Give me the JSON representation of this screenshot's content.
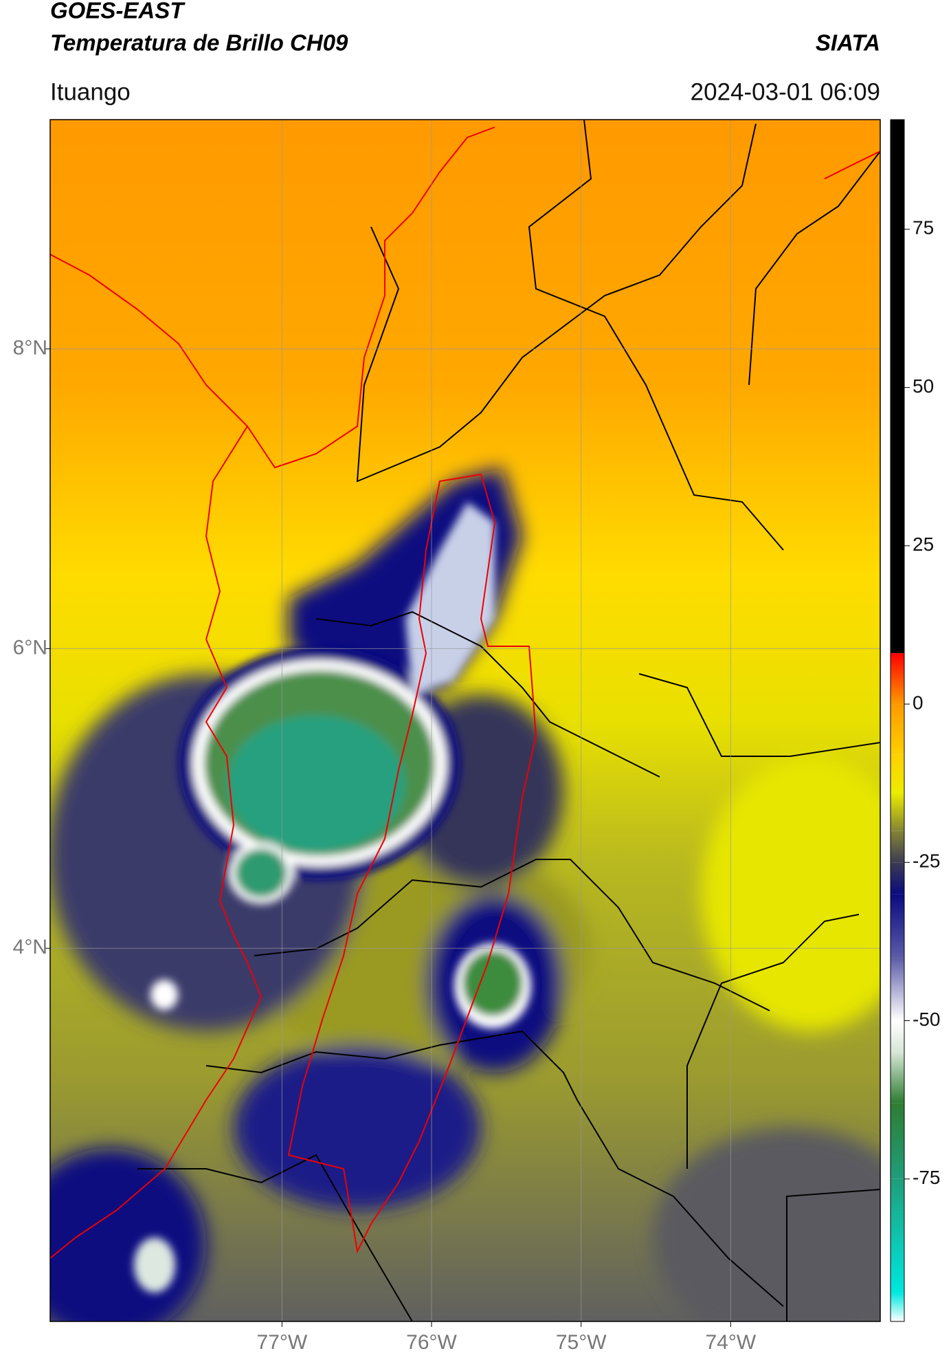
{
  "header": {
    "title": "GOES-EAST",
    "subtitle": "Temperatura de Brillo CH09",
    "source": "SIATA",
    "location": "Ituango",
    "datetime": "2024-03-01 06:09"
  },
  "map": {
    "xlim": [
      -78.55,
      -73.0
    ],
    "ylim": [
      1.51,
      9.53
    ],
    "xticks": [
      {
        "value": -77,
        "label": "77°W"
      },
      {
        "value": -76,
        "label": "76°W"
      },
      {
        "value": -75,
        "label": "75°W"
      },
      {
        "value": -74,
        "label": "74°W"
      }
    ],
    "yticks": [
      {
        "value": 4,
        "label": "4°N"
      },
      {
        "value": 6,
        "label": "6°N"
      },
      {
        "value": 8,
        "label": "8°N"
      }
    ],
    "grid": true
  },
  "colorbar": {
    "lim": [
      -97.5,
      92.3
    ],
    "ticks": [
      -75,
      -50,
      -25,
      0,
      25,
      50,
      75
    ],
    "colors": [
      {
        "value": -97.5,
        "color": "#ffffff"
      },
      {
        "value": -93,
        "color": "#00e8e0"
      },
      {
        "value": -75,
        "color": "#1f9e7a"
      },
      {
        "value": -63,
        "color": "#2e7d32"
      },
      {
        "value": -55,
        "color": "#d6e6d6"
      },
      {
        "value": -50,
        "color": "#ffffff"
      },
      {
        "value": -40,
        "color": "#5b5ba8"
      },
      {
        "value": -30,
        "color": "#0a0a80"
      },
      {
        "value": -25,
        "color": "#3c3c52"
      },
      {
        "value": -20,
        "color": "#858534"
      },
      {
        "value": -14,
        "color": "#ecec00"
      },
      {
        "value": -8,
        "color": "#ffd000"
      },
      {
        "value": 0,
        "color": "#ff9a00"
      },
      {
        "value": 8,
        "color": "#ff0000"
      },
      {
        "value": 8.1,
        "color": "#000000"
      },
      {
        "value": 92.3,
        "color": "#000000"
      }
    ]
  }
}
